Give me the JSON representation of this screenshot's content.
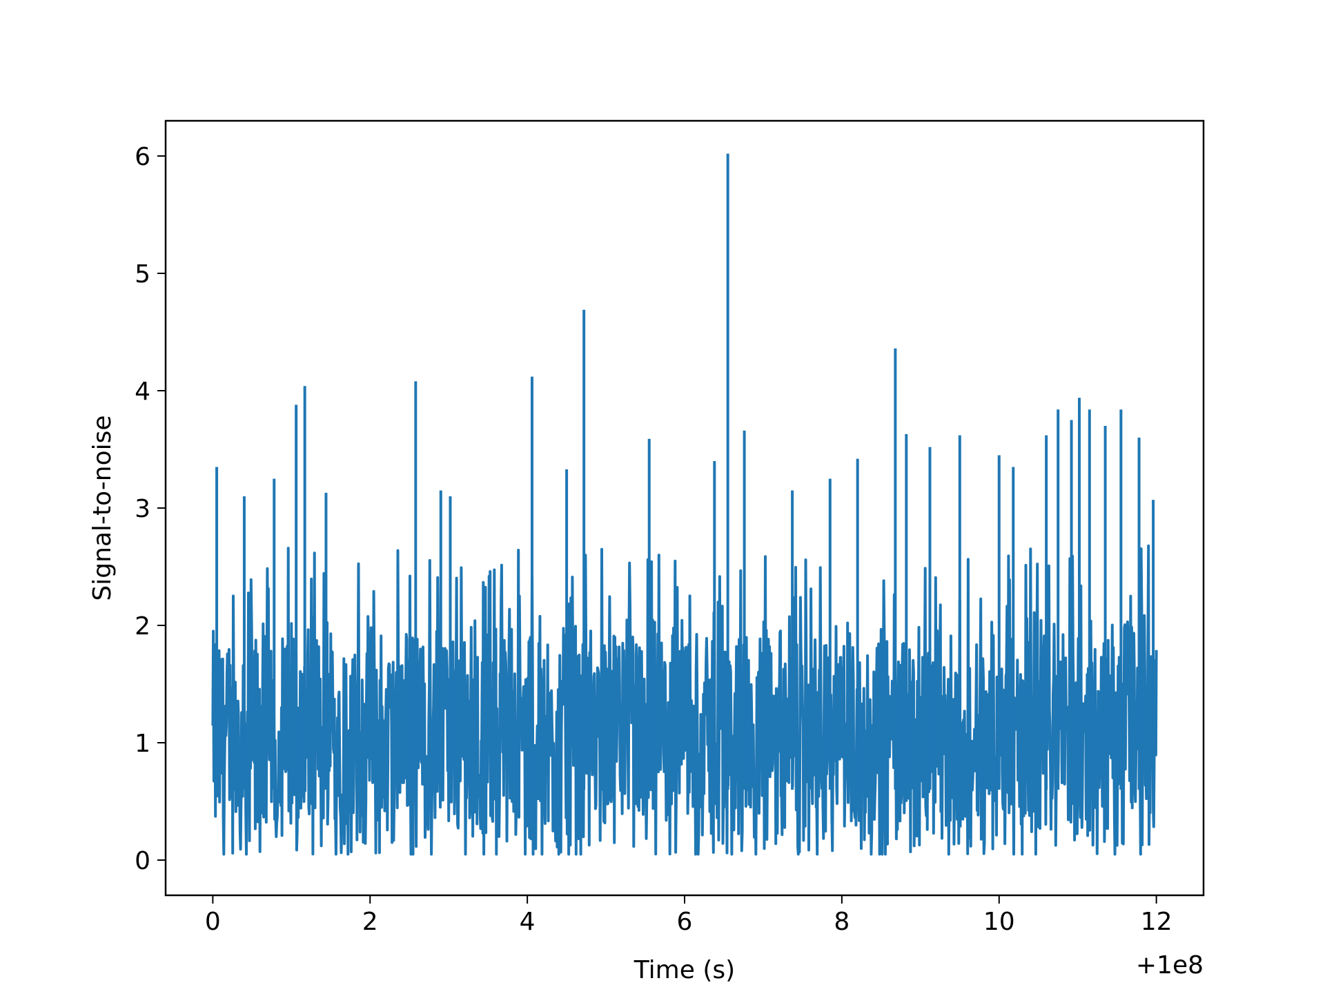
{
  "chart_data": {
    "type": "line",
    "title": "",
    "xlabel": "Time (s)",
    "ylabel": "Signal-to-noise",
    "x_offset_label": "+1e8",
    "x_offset": 100000000,
    "xlim": [
      -0.6,
      12.6
    ],
    "ylim": [
      -0.3,
      6.3
    ],
    "x_ticks": [
      "0",
      "2",
      "4",
      "6",
      "8",
      "10",
      "12"
    ],
    "y_ticks": [
      "0",
      "1",
      "2",
      "3",
      "4",
      "5",
      "6"
    ],
    "grid": false,
    "legend": "none",
    "line_color": "#1f77b4",
    "sample_rate_hz": 200,
    "series": [
      {
        "noise_baseline_mean": 1.0,
        "noise_range": [
          0.0,
          2.7
        ],
        "peaks": [
          {
            "x": 0.05,
            "y": 3.35
          },
          {
            "x": 0.4,
            "y": 3.1
          },
          {
            "x": 0.78,
            "y": 3.25
          },
          {
            "x": 1.06,
            "y": 3.88
          },
          {
            "x": 1.17,
            "y": 4.04
          },
          {
            "x": 1.44,
            "y": 3.13
          },
          {
            "x": 2.58,
            "y": 4.08
          },
          {
            "x": 2.9,
            "y": 3.15
          },
          {
            "x": 3.02,
            "y": 3.1
          },
          {
            "x": 4.06,
            "y": 4.12
          },
          {
            "x": 4.5,
            "y": 3.33
          },
          {
            "x": 4.72,
            "y": 4.69
          },
          {
            "x": 5.55,
            "y": 3.59
          },
          {
            "x": 6.38,
            "y": 3.4
          },
          {
            "x": 6.55,
            "y": 6.02
          },
          {
            "x": 6.76,
            "y": 3.66
          },
          {
            "x": 7.37,
            "y": 3.15
          },
          {
            "x": 7.85,
            "y": 3.25
          },
          {
            "x": 8.2,
            "y": 3.42
          },
          {
            "x": 8.68,
            "y": 4.36
          },
          {
            "x": 8.82,
            "y": 3.63
          },
          {
            "x": 9.12,
            "y": 3.52
          },
          {
            "x": 9.5,
            "y": 3.62
          },
          {
            "x": 10.0,
            "y": 3.45
          },
          {
            "x": 10.18,
            "y": 3.35
          },
          {
            "x": 10.6,
            "y": 3.62
          },
          {
            "x": 10.75,
            "y": 3.84
          },
          {
            "x": 10.92,
            "y": 3.75
          },
          {
            "x": 11.02,
            "y": 3.94
          },
          {
            "x": 11.15,
            "y": 3.84
          },
          {
            "x": 11.35,
            "y": 3.7
          },
          {
            "x": 11.55,
            "y": 3.84
          },
          {
            "x": 11.78,
            "y": 3.6
          },
          {
            "x": 11.96,
            "y": 3.07
          }
        ],
        "x_end": 12.0
      }
    ]
  }
}
